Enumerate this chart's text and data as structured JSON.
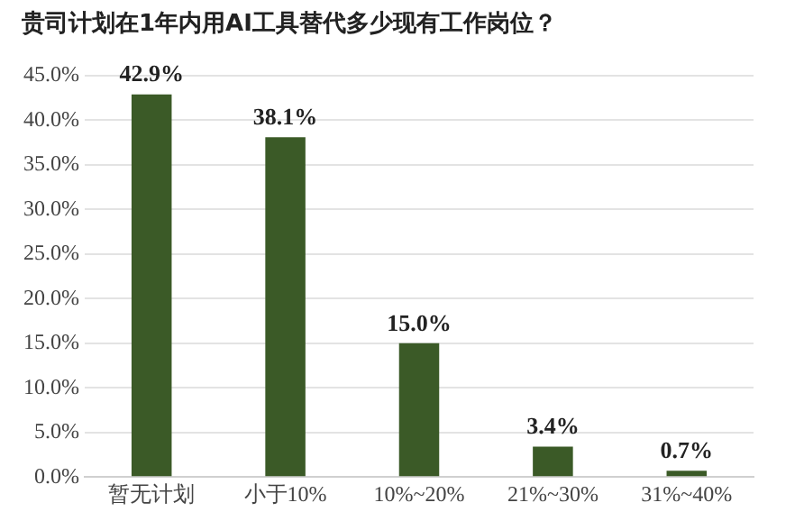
{
  "chart_data": {
    "type": "bar",
    "title": "贵司计划在1年内用AI工具替代多少现有工作岗位？",
    "categories": [
      "暂无计划",
      "小于10%",
      "10%~20%",
      "21%~30%",
      "31%~40%"
    ],
    "values": [
      42.9,
      38.1,
      15.0,
      3.4,
      0.7
    ],
    "value_labels": [
      "42.9%",
      "38.1%",
      "15.0%",
      "3.4%",
      "0.7%"
    ],
    "color": "#3b5a27",
    "ylim": [
      0,
      45
    ],
    "yticks": [
      {
        "value": 0,
        "label": "0.0%"
      },
      {
        "value": 5,
        "label": "5.0%"
      },
      {
        "value": 10,
        "label": "10.0%"
      },
      {
        "value": 15,
        "label": "15.0%"
      },
      {
        "value": 20,
        "label": "20.0%"
      },
      {
        "value": 25,
        "label": "25.0%"
      },
      {
        "value": 30,
        "label": "30.0%"
      },
      {
        "value": 35,
        "label": "35.0%"
      },
      {
        "value": 40,
        "label": "40.0%"
      },
      {
        "value": 45,
        "label": "45.0%"
      }
    ],
    "grid": "y"
  }
}
